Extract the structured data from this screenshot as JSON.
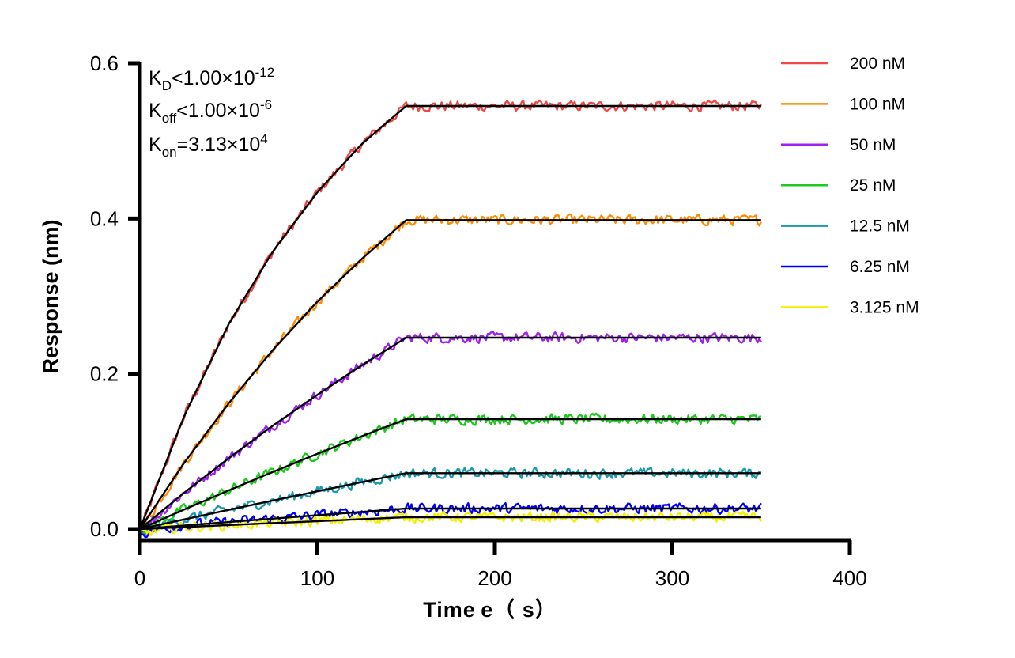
{
  "chart_data": {
    "type": "line",
    "xlabel": "Time e（ s）",
    "ylabel": "Response (nm)",
    "xlim": [
      0,
      400
    ],
    "ylim": [
      0,
      0.6
    ],
    "xticks": [
      "0",
      "100",
      "200",
      "300",
      "400"
    ],
    "yticks": [
      "0.0",
      "0.2",
      "0.4",
      "0.6"
    ],
    "xtick_values": [
      0,
      100,
      200,
      300,
      400
    ],
    "ytick_values": [
      0,
      0.2,
      0.4,
      0.6
    ],
    "grid": false,
    "legend_position": "top-right",
    "annotations": {
      "kd": {
        "main": "K",
        "sub": "D",
        "rel": "<1.00×10",
        "sup": "-12"
      },
      "koff": {
        "main": "K",
        "sub": "off",
        "rel": "<1.00×10",
        "sup": "-6"
      },
      "kon": {
        "main": "K",
        "sub": "on",
        "rel": "=3.13×10",
        "sup": "4"
      }
    },
    "fit_color": "#000000",
    "fit_times": [
      0,
      25,
      50,
      75,
      100,
      125,
      150,
      200,
      250,
      300,
      350
    ],
    "series": [
      {
        "name": "200 nM",
        "color": "#f04848",
        "fit": [
          0,
          0.146,
          0.264,
          0.358,
          0.434,
          0.496,
          0.545,
          0.545,
          0.545,
          0.545,
          0.545
        ]
      },
      {
        "name": "100 nM",
        "color": "#ff8c00",
        "fit": [
          0,
          0.0856,
          0.162,
          0.231,
          0.293,
          0.348,
          0.398,
          0.398,
          0.398,
          0.398,
          0.398
        ]
      },
      {
        "name": "50 nM",
        "color": "#a020f0",
        "fit": [
          0,
          0.0469,
          0.0912,
          0.1334,
          0.173,
          0.211,
          0.2465,
          0.2465,
          0.2465,
          0.2465,
          0.2465
        ]
      },
      {
        "name": "25 nM",
        "color": "#1ec81e",
        "fit": [
          0,
          0.0253,
          0.0498,
          0.0737,
          0.097,
          0.1196,
          0.1416,
          0.1416,
          0.1416,
          0.1416,
          0.1416
        ]
      },
      {
        "name": "12.5 nM",
        "color": "#1a9aaa",
        "fit": [
          0,
          0.0125,
          0.0248,
          0.0368,
          0.0487,
          0.0605,
          0.072,
          0.072,
          0.072,
          0.072,
          0.072
        ]
      },
      {
        "name": "6.25 nM",
        "color": "#0000ff",
        "fit": [
          0,
          0.0046,
          0.0091,
          0.0135,
          0.0179,
          0.0221,
          0.0265,
          0.0265,
          0.0265,
          0.0265,
          0.0265
        ]
      },
      {
        "name": "3.125 nM",
        "color": "#f5f000",
        "fit": [
          0,
          0.0026,
          0.0052,
          0.0077,
          0.0102,
          0.0128,
          0.0153,
          0.0153,
          0.0153,
          0.0153,
          0.0153
        ]
      }
    ]
  }
}
